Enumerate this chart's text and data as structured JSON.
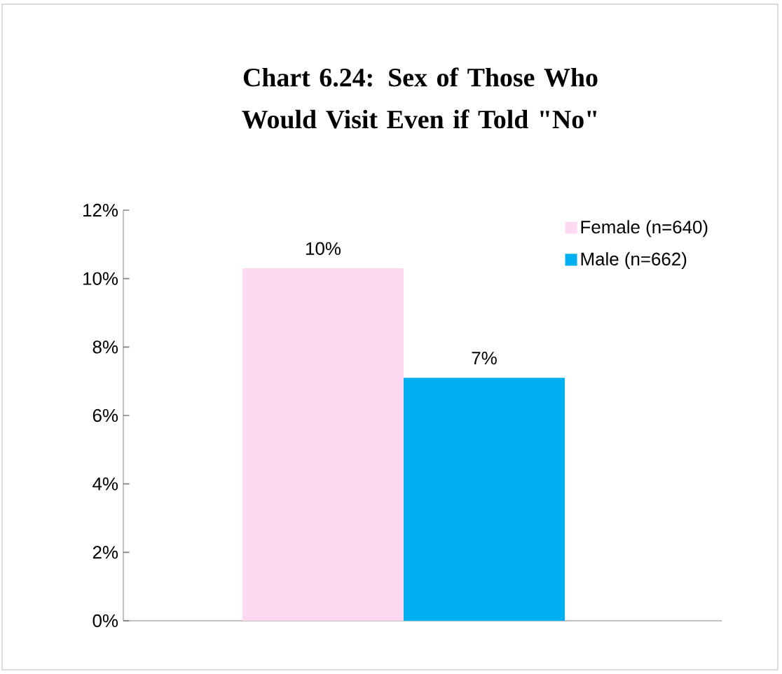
{
  "chart_data": {
    "type": "bar",
    "title": "Chart 6.24: Sex of Those Who Would Visit Even if Told \"No\"",
    "categories": [
      null
    ],
    "series": [
      {
        "name": "Female (n=640)",
        "color": "#ffd9f2",
        "values": [
          10.3
        ],
        "value_labels": [
          "10%"
        ]
      },
      {
        "name": "Male (n=662)",
        "color": "#00b0f0",
        "values": [
          7.1
        ],
        "value_labels": [
          "7%"
        ]
      }
    ],
    "ylim": [
      0,
      12
    ],
    "yticks": [
      {
        "value": 0,
        "label": "0%"
      },
      {
        "value": 2,
        "label": "2%"
      },
      {
        "value": 4,
        "label": "4%"
      },
      {
        "value": 6,
        "label": "6%"
      },
      {
        "value": 8,
        "label": "8%"
      },
      {
        "value": 10,
        "label": "10%"
      },
      {
        "value": 12,
        "label": "12%"
      }
    ],
    "legend": "top right",
    "grid": false
  }
}
